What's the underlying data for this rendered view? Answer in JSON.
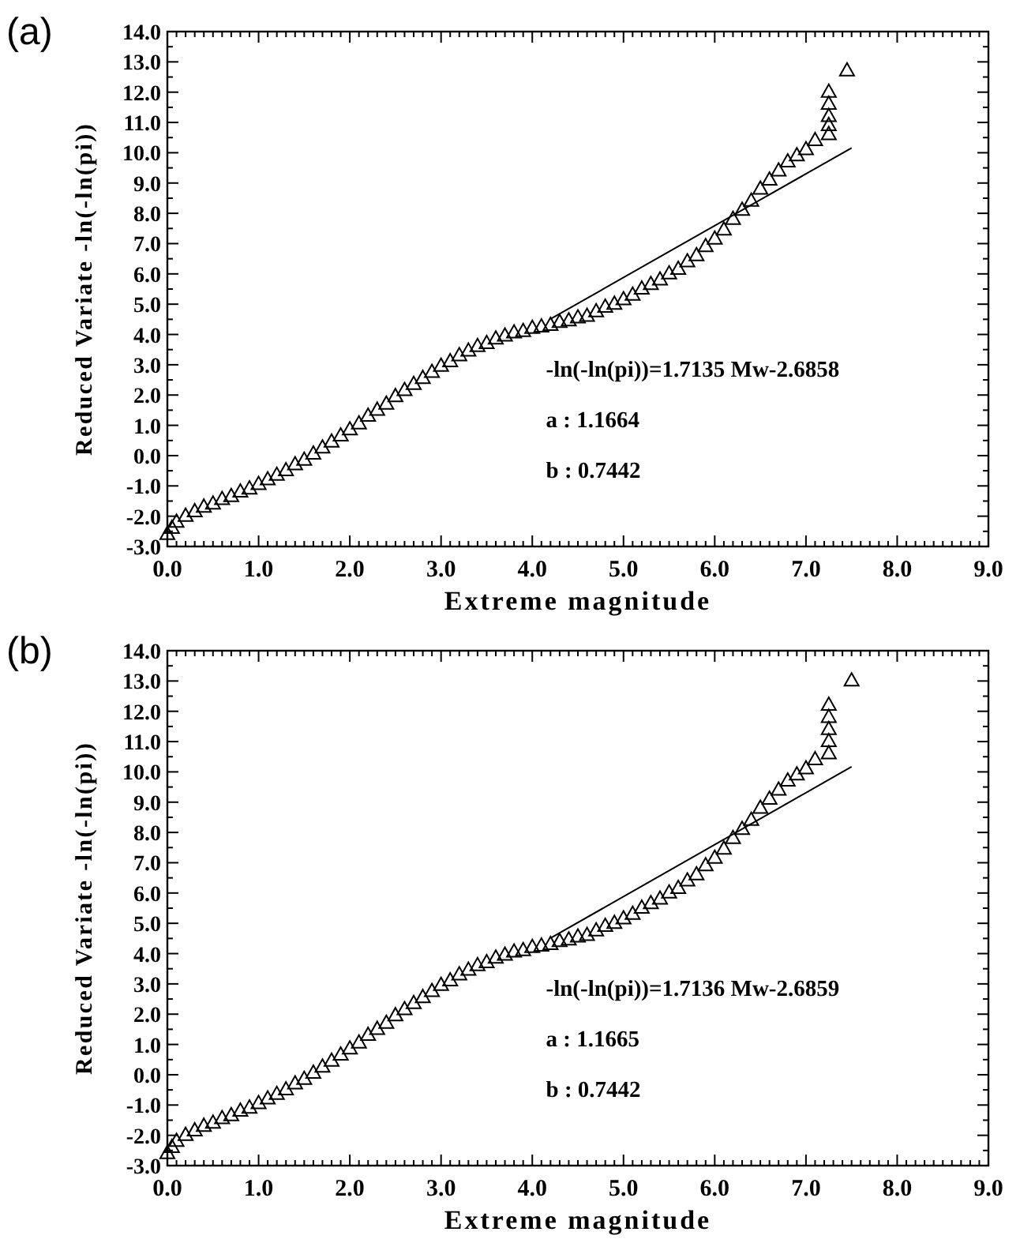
{
  "chart_data": [
    {
      "type": "scatter",
      "title": "(a)",
      "xlabel": "Extreme magnitude",
      "ylabel": "Reduced Variate -ln(-ln(pi))",
      "xlim": [
        0,
        9
      ],
      "ylim": [
        -3,
        14
      ],
      "xticks": [
        {
          "value": 0,
          "label": "0.0"
        },
        {
          "value": 1,
          "label": "1.0"
        },
        {
          "value": 2,
          "label": "2.0"
        },
        {
          "value": 3,
          "label": "3.0"
        },
        {
          "value": 4,
          "label": "4.0"
        },
        {
          "value": 5,
          "label": "5.0"
        },
        {
          "value": 6,
          "label": "6.0"
        },
        {
          "value": 7,
          "label": "7.0"
        },
        {
          "value": 8,
          "label": "8.0"
        },
        {
          "value": 9,
          "label": "9.0"
        }
      ],
      "yticks": [
        {
          "value": -3,
          "label": "-3.0"
        },
        {
          "value": -2,
          "label": "-2.0"
        },
        {
          "value": -1,
          "label": "-1.0"
        },
        {
          "value": 0,
          "label": "0.0"
        },
        {
          "value": 1,
          "label": "1.0"
        },
        {
          "value": 2,
          "label": "2.0"
        },
        {
          "value": 3,
          "label": "3.0"
        },
        {
          "value": 4,
          "label": "4.0"
        },
        {
          "value": 5,
          "label": "5.0"
        },
        {
          "value": 6,
          "label": "6.0"
        },
        {
          "value": 7,
          "label": "7.0"
        },
        {
          "value": 8,
          "label": "8.0"
        },
        {
          "value": 9,
          "label": "9.0"
        },
        {
          "value": 10,
          "label": "10.0"
        },
        {
          "value": 11,
          "label": "11.0"
        },
        {
          "value": 12,
          "label": "12.0"
        },
        {
          "value": 13,
          "label": "13.0"
        },
        {
          "value": 14,
          "label": "14.0"
        }
      ],
      "grid": false,
      "annotations": [
        "-ln(-ln(pi))=1.7135  Mw-2.6858",
        "a  :  1.1664",
        "b  :  0.7442"
      ],
      "series": [
        {
          "type": "scatter",
          "color": "#000000",
          "marker": "triangle",
          "x": [
            0.0,
            0.05,
            0.1,
            0.2,
            0.3,
            0.4,
            0.5,
            0.6,
            0.7,
            0.8,
            0.9,
            1.0,
            1.1,
            1.2,
            1.3,
            1.4,
            1.5,
            1.6,
            1.7,
            1.8,
            1.9,
            2.0,
            2.1,
            2.2,
            2.3,
            2.4,
            2.5,
            2.6,
            2.7,
            2.8,
            2.9,
            3.0,
            3.1,
            3.2,
            3.3,
            3.4,
            3.5,
            3.6,
            3.7,
            3.8,
            3.9,
            4.0,
            4.1,
            4.2,
            4.3,
            4.4,
            4.5,
            4.6,
            4.7,
            4.8,
            4.9,
            5.0,
            5.1,
            5.2,
            5.3,
            5.4,
            5.5,
            5.6,
            5.7,
            5.8,
            5.9,
            6.0,
            6.1,
            6.2,
            6.3,
            6.4,
            6.5,
            6.6,
            6.7,
            6.8,
            6.9,
            7.0,
            7.1,
            7.25,
            7.25,
            7.25,
            7.25,
            7.25,
            7.45
          ],
          "values": [
            -2.6,
            -2.4,
            -2.2,
            -2.0,
            -1.85,
            -1.7,
            -1.6,
            -1.45,
            -1.35,
            -1.2,
            -1.1,
            -0.95,
            -0.8,
            -0.65,
            -0.5,
            -0.3,
            -0.15,
            0.05,
            0.25,
            0.45,
            0.65,
            0.85,
            1.05,
            1.3,
            1.5,
            1.7,
            1.95,
            2.15,
            2.35,
            2.55,
            2.75,
            2.95,
            3.1,
            3.3,
            3.45,
            3.6,
            3.7,
            3.85,
            3.95,
            4.05,
            4.1,
            4.2,
            4.25,
            4.3,
            4.4,
            4.45,
            4.55,
            4.6,
            4.75,
            4.9,
            5.0,
            5.15,
            5.3,
            5.5,
            5.65,
            5.8,
            6.0,
            6.15,
            6.4,
            6.6,
            6.9,
            7.15,
            7.45,
            7.8,
            8.1,
            8.4,
            8.8,
            9.1,
            9.4,
            9.7,
            9.9,
            10.1,
            10.4,
            10.6,
            10.9,
            11.2,
            11.6,
            12.0,
            12.7
          ]
        },
        {
          "type": "line",
          "color": "#000000",
          "marker": "none",
          "x": [
            4.2,
            7.5
          ],
          "values": [
            4.51,
            10.16
          ]
        }
      ]
    },
    {
      "type": "scatter",
      "title": "(b)",
      "xlabel": "Extreme magnitude",
      "ylabel": "Reduced Variate -ln(-ln(pi))",
      "xlim": [
        0,
        9
      ],
      "ylim": [
        -3,
        14
      ],
      "xticks": [
        {
          "value": 0,
          "label": "0.0"
        },
        {
          "value": 1,
          "label": "1.0"
        },
        {
          "value": 2,
          "label": "2.0"
        },
        {
          "value": 3,
          "label": "3.0"
        },
        {
          "value": 4,
          "label": "4.0"
        },
        {
          "value": 5,
          "label": "5.0"
        },
        {
          "value": 6,
          "label": "6.0"
        },
        {
          "value": 7,
          "label": "7.0"
        },
        {
          "value": 8,
          "label": "8.0"
        },
        {
          "value": 9,
          "label": "9.0"
        }
      ],
      "yticks": [
        {
          "value": -3,
          "label": "-3.0"
        },
        {
          "value": -2,
          "label": "-2.0"
        },
        {
          "value": -1,
          "label": "-1.0"
        },
        {
          "value": 0,
          "label": "0.0"
        },
        {
          "value": 1,
          "label": "1.0"
        },
        {
          "value": 2,
          "label": "2.0"
        },
        {
          "value": 3,
          "label": "3.0"
        },
        {
          "value": 4,
          "label": "4.0"
        },
        {
          "value": 5,
          "label": "5.0"
        },
        {
          "value": 6,
          "label": "6.0"
        },
        {
          "value": 7,
          "label": "7.0"
        },
        {
          "value": 8,
          "label": "8.0"
        },
        {
          "value": 9,
          "label": "9.0"
        },
        {
          "value": 10,
          "label": "10.0"
        },
        {
          "value": 11,
          "label": "11.0"
        },
        {
          "value": 12,
          "label": "12.0"
        },
        {
          "value": 13,
          "label": "13.0"
        },
        {
          "value": 14,
          "label": "14.0"
        }
      ],
      "grid": false,
      "annotations": [
        "-ln(-ln(pi))=1.7136  Mw-2.6859",
        "a  :  1.1665",
        "b  :  0.7442"
      ],
      "series": [
        {
          "type": "scatter",
          "color": "#000000",
          "marker": "triangle",
          "x": [
            0.0,
            0.05,
            0.1,
            0.2,
            0.3,
            0.4,
            0.5,
            0.6,
            0.7,
            0.8,
            0.9,
            1.0,
            1.1,
            1.2,
            1.3,
            1.4,
            1.5,
            1.6,
            1.7,
            1.8,
            1.9,
            2.0,
            2.1,
            2.2,
            2.3,
            2.4,
            2.5,
            2.6,
            2.7,
            2.8,
            2.9,
            3.0,
            3.1,
            3.2,
            3.3,
            3.4,
            3.5,
            3.6,
            3.7,
            3.8,
            3.9,
            4.0,
            4.1,
            4.2,
            4.3,
            4.4,
            4.5,
            4.6,
            4.7,
            4.8,
            4.9,
            5.0,
            5.1,
            5.2,
            5.3,
            5.4,
            5.5,
            5.6,
            5.7,
            5.8,
            5.9,
            6.0,
            6.1,
            6.2,
            6.3,
            6.4,
            6.5,
            6.6,
            6.7,
            6.8,
            6.9,
            7.0,
            7.1,
            7.25,
            7.25,
            7.25,
            7.25,
            7.25,
            7.5
          ],
          "values": [
            -2.6,
            -2.4,
            -2.2,
            -2.0,
            -1.85,
            -1.7,
            -1.6,
            -1.45,
            -1.35,
            -1.2,
            -1.1,
            -0.95,
            -0.8,
            -0.65,
            -0.5,
            -0.3,
            -0.15,
            0.05,
            0.25,
            0.45,
            0.65,
            0.85,
            1.05,
            1.3,
            1.5,
            1.7,
            1.95,
            2.15,
            2.35,
            2.55,
            2.75,
            2.95,
            3.1,
            3.3,
            3.45,
            3.6,
            3.7,
            3.85,
            3.95,
            4.05,
            4.1,
            4.2,
            4.25,
            4.3,
            4.4,
            4.45,
            4.55,
            4.6,
            4.75,
            4.9,
            5.0,
            5.15,
            5.3,
            5.5,
            5.65,
            5.8,
            6.0,
            6.15,
            6.4,
            6.6,
            6.9,
            7.15,
            7.45,
            7.8,
            8.1,
            8.4,
            8.8,
            9.1,
            9.4,
            9.7,
            9.9,
            10.1,
            10.4,
            10.6,
            11.0,
            11.4,
            11.8,
            12.2,
            13.0
          ]
        },
        {
          "type": "line",
          "color": "#000000",
          "marker": "none",
          "x": [
            4.2,
            7.5
          ],
          "values": [
            4.51,
            10.17
          ]
        }
      ]
    }
  ]
}
